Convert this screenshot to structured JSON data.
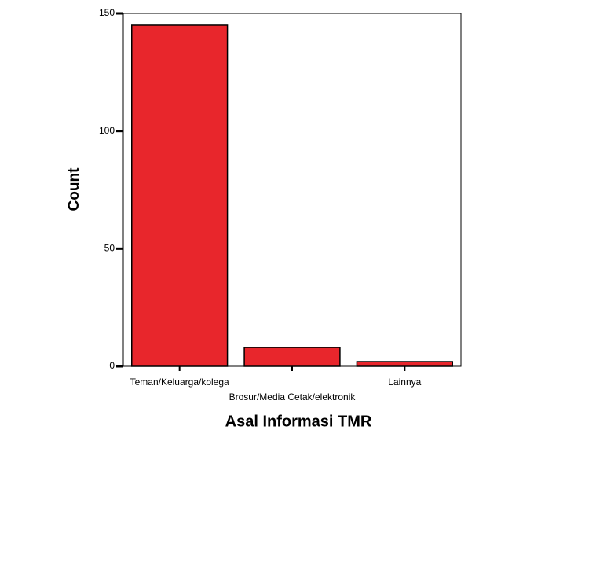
{
  "chart_data": {
    "type": "bar",
    "x_label": "Asal Informasi TMR",
    "y_label": "Count",
    "categories": [
      "Teman/Keluarga/kolega",
      "Brosur/Media Cetak/elektronik",
      "Lainnya"
    ],
    "values": [
      145,
      8,
      2
    ],
    "color": "#e8262c",
    "ylim": [
      0,
      150
    ],
    "yticks": [
      0,
      50,
      100,
      150
    ]
  }
}
